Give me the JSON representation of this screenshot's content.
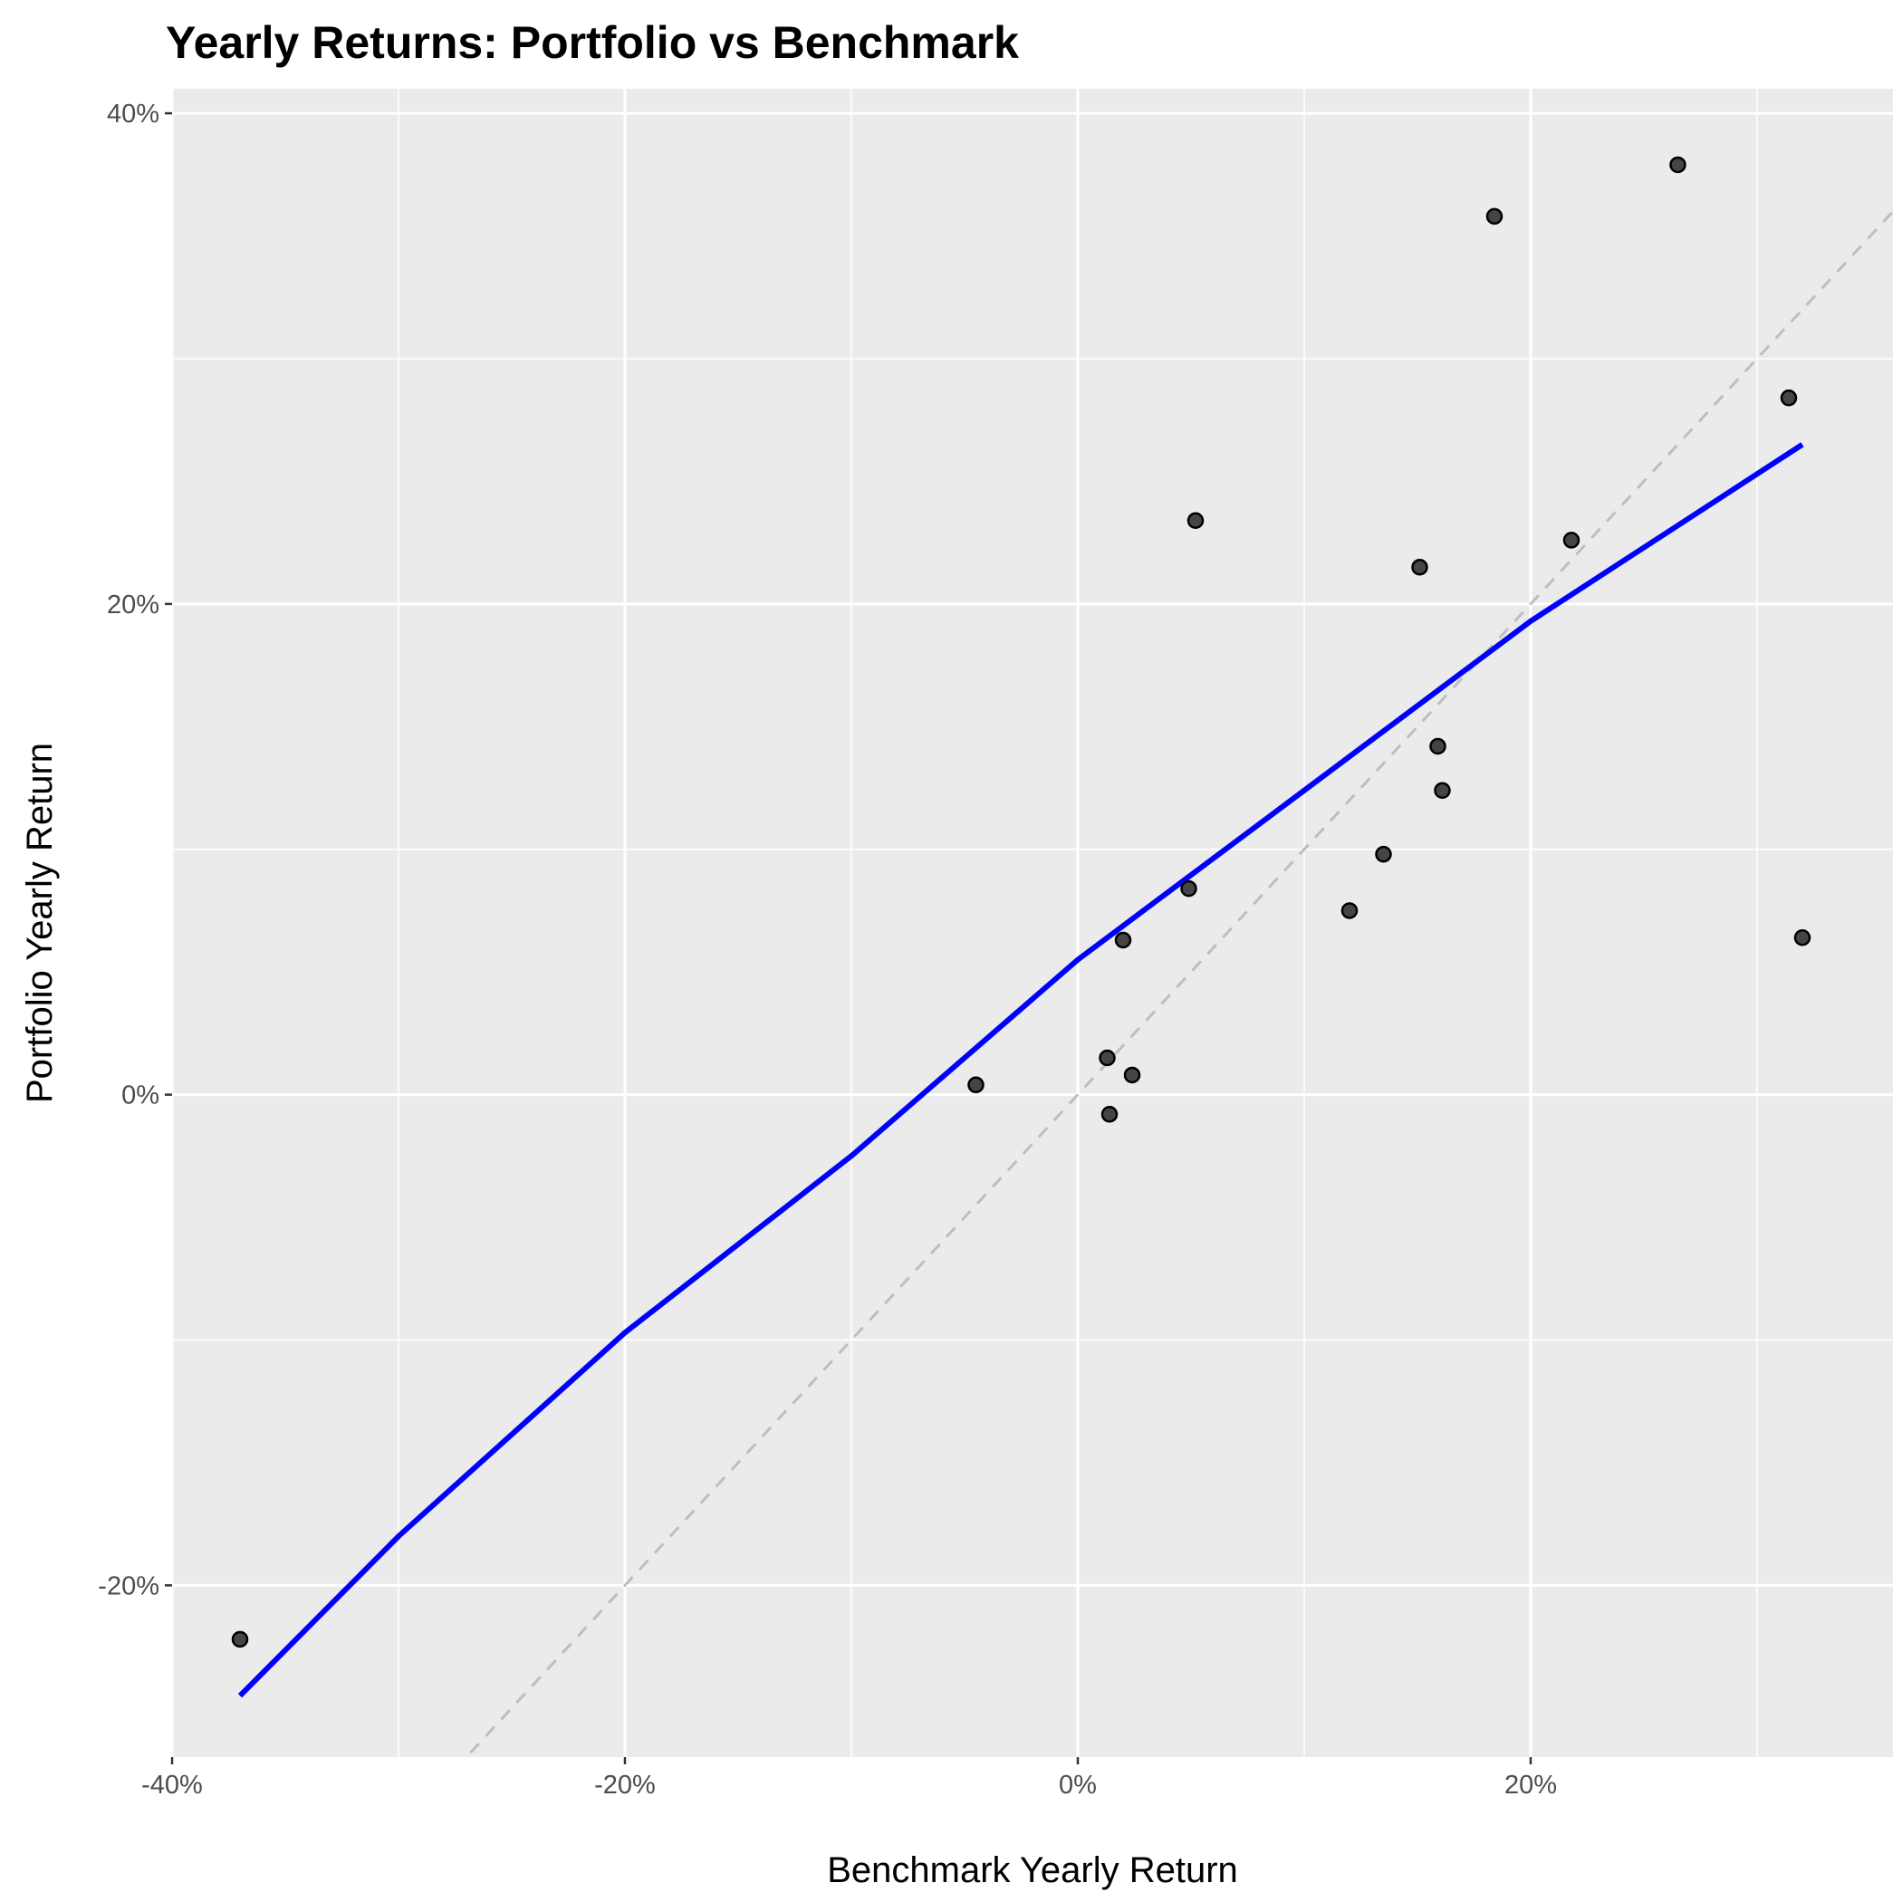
{
  "chart_data": {
    "type": "scatter",
    "title": "Yearly Returns: Portfolio vs Benchmark",
    "xlabel": "Benchmark Yearly Return",
    "ylabel": "Portfolio Yearly Return",
    "xlim": [
      -0.4,
      0.36
    ],
    "ylim": [
      -0.27,
      0.41
    ],
    "x_ticks": [
      -0.4,
      -0.2,
      0.0,
      0.2
    ],
    "x_tick_labels": [
      "-40%",
      "-20%",
      "0%",
      "20%"
    ],
    "y_ticks": [
      -0.2,
      0.0,
      0.2,
      0.4
    ],
    "y_tick_labels": [
      "-20%",
      "0%",
      "20%",
      "40%"
    ],
    "grid": true,
    "legend": "none",
    "colors": {
      "panel": "#ebebeb",
      "grid": "#ffffff",
      "point": "#333333",
      "fit_line": "#0000ff",
      "reference_line": "#bebebe"
    },
    "points": [
      {
        "x": -0.37,
        "y": -0.222
      },
      {
        "x": -0.045,
        "y": 0.004
      },
      {
        "x": 0.013,
        "y": 0.015
      },
      {
        "x": 0.014,
        "y": -0.008
      },
      {
        "x": 0.02,
        "y": 0.063
      },
      {
        "x": 0.024,
        "y": 0.008
      },
      {
        "x": 0.049,
        "y": 0.084
      },
      {
        "x": 0.052,
        "y": 0.234
      },
      {
        "x": 0.12,
        "y": 0.075
      },
      {
        "x": 0.135,
        "y": 0.098
      },
      {
        "x": 0.151,
        "y": 0.215
      },
      {
        "x": 0.159,
        "y": 0.142
      },
      {
        "x": 0.161,
        "y": 0.124
      },
      {
        "x": 0.184,
        "y": 0.358
      },
      {
        "x": 0.218,
        "y": 0.226
      },
      {
        "x": 0.265,
        "y": 0.379
      },
      {
        "x": 0.314,
        "y": 0.284
      },
      {
        "x": 0.32,
        "y": 0.064
      }
    ],
    "fit_line": {
      "x": [
        -0.37,
        -0.3,
        -0.2,
        -0.1,
        0.0,
        0.1,
        0.2,
        0.32
      ],
      "y": [
        -0.245,
        -0.18,
        -0.097,
        -0.025,
        0.055,
        0.124,
        0.193,
        0.265
      ]
    },
    "reference_line": {
      "x": [
        -0.275,
        0.36
      ],
      "y": [
        -0.275,
        0.36
      ]
    }
  }
}
